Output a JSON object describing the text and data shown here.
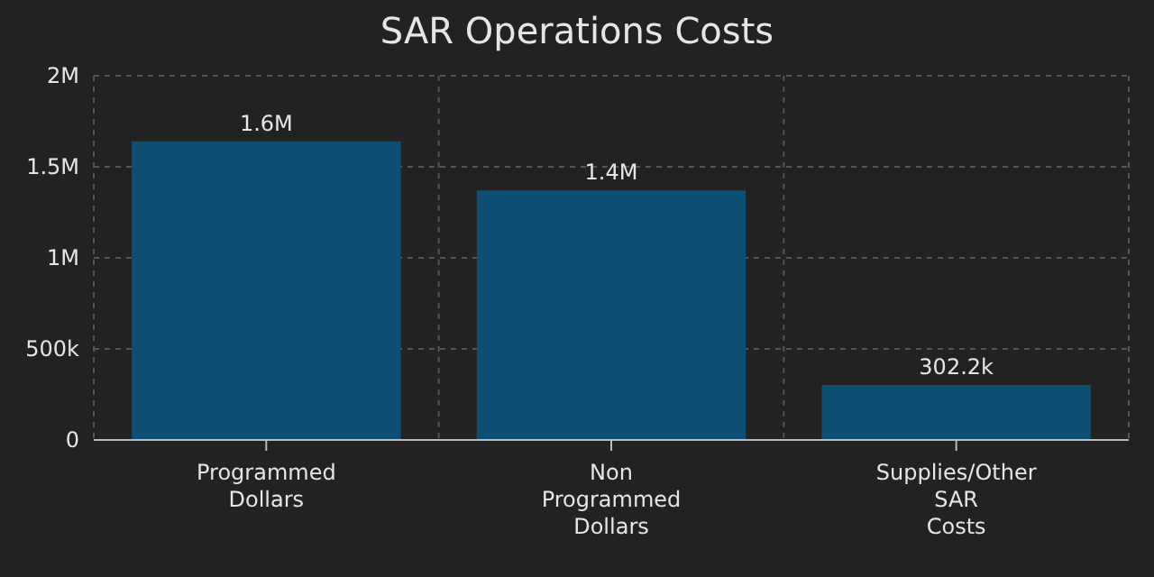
{
  "chart_data": {
    "type": "bar",
    "title": "SAR Operations Costs",
    "categories": [
      "Programmed Dollars",
      "Non Programmed Dollars",
      "Supplies/Other SAR Costs"
    ],
    "values": [
      1640000,
      1370000,
      302200
    ],
    "color": "#0d4e72",
    "value_labels": [
      "1.6M",
      "1.4M",
      "302.2k"
    ],
    "ylim": [
      0,
      2000000
    ],
    "yticks": [
      {
        "value": 0,
        "label": "0"
      },
      {
        "value": 500000,
        "label": "500k"
      },
      {
        "value": 1000000,
        "label": "1M"
      },
      {
        "value": 1500000,
        "label": "1.5M"
      },
      {
        "value": 2000000,
        "label": "2M"
      }
    ],
    "grid": true
  }
}
